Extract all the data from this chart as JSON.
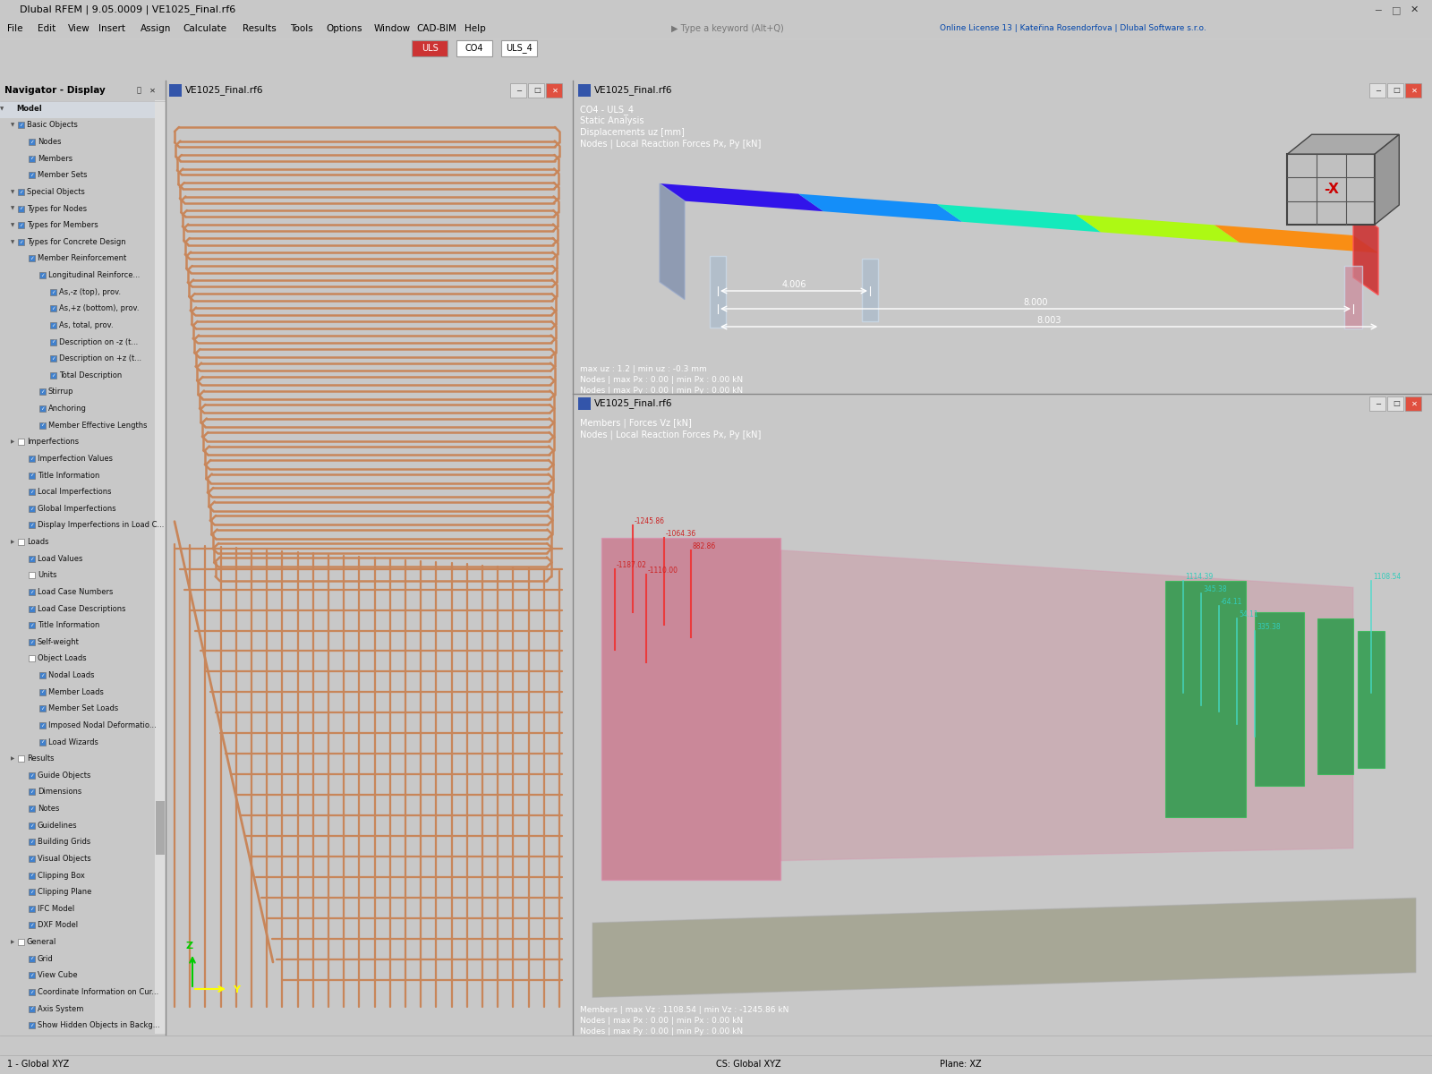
{
  "title_bar": "Dlubal RFEM | 9.05.0009 | VE1025_Final.rf6",
  "bg_main": "#c8c8c8",
  "titlebar_bg": "#f0f0f0",
  "menu_bg": "#f0f0f0",
  "toolbar_bg": "#e8e8e8",
  "nav_header_bg": "#d0d8e8",
  "nav_bg": "#f0f0f0",
  "viewport_bg": "#111111",
  "window_titlebar_bg": "#c8d8e8",
  "copper": "#c8865a",
  "copper2": "#d49070",
  "status_bg": "#d4d4d4",
  "status_bg2": "#e0e0e0",
  "menu_items": [
    "File",
    "Edit",
    "View",
    "Insert",
    "Assign",
    "Calculate",
    "Results",
    "Tools",
    "Options",
    "Window",
    "CAD-BIM",
    "Help"
  ],
  "nav_items": [
    [
      "Model",
      0,
      true
    ],
    [
      "Basic Objects",
      1,
      true
    ],
    [
      "Nodes",
      2,
      true
    ],
    [
      "Members",
      2,
      true
    ],
    [
      "Member Sets",
      2,
      true
    ],
    [
      "Special Objects",
      1,
      true
    ],
    [
      "Types for Nodes",
      1,
      true
    ],
    [
      "Types for Members",
      1,
      true
    ],
    [
      "Types for Concrete Design",
      1,
      true
    ],
    [
      "Member Reinforcement",
      2,
      true
    ],
    [
      "Longitudinal Reinforce...",
      3,
      true
    ],
    [
      "As,-z (top), prov.",
      4,
      true
    ],
    [
      "As,+z (bottom), prov.",
      4,
      true
    ],
    [
      "As, total, prov.",
      4,
      true
    ],
    [
      "Description on -z (t...",
      4,
      true
    ],
    [
      "Description on +z (t...",
      4,
      true
    ],
    [
      "Total Description",
      4,
      true
    ],
    [
      "Stirrup",
      3,
      true
    ],
    [
      "Anchoring",
      3,
      true
    ],
    [
      "Member Effective Lengths",
      3,
      true
    ],
    [
      "Imperfections",
      1,
      false
    ],
    [
      "Imperfection Values",
      2,
      true
    ],
    [
      "Title Information",
      2,
      true
    ],
    [
      "Local Imperfections",
      2,
      true
    ],
    [
      "Global Imperfections",
      2,
      true
    ],
    [
      "Display Imperfections in Load C...",
      2,
      true
    ],
    [
      "Loads",
      1,
      false
    ],
    [
      "Load Values",
      2,
      true
    ],
    [
      "Units",
      2,
      false
    ],
    [
      "Load Case Numbers",
      2,
      true
    ],
    [
      "Load Case Descriptions",
      2,
      true
    ],
    [
      "Title Information",
      2,
      true
    ],
    [
      "Self-weight",
      2,
      true
    ],
    [
      "Object Loads",
      2,
      false
    ],
    [
      "Nodal Loads",
      3,
      true
    ],
    [
      "Member Loads",
      3,
      true
    ],
    [
      "Member Set Loads",
      3,
      true
    ],
    [
      "Imposed Nodal Deformatio...",
      3,
      true
    ],
    [
      "Load Wizards",
      3,
      true
    ],
    [
      "Results",
      1,
      false
    ],
    [
      "Guide Objects",
      2,
      true
    ],
    [
      "Dimensions",
      2,
      true
    ],
    [
      "Notes",
      2,
      true
    ],
    [
      "Guidelines",
      2,
      true
    ],
    [
      "Building Grids",
      2,
      true
    ],
    [
      "Visual Objects",
      2,
      true
    ],
    [
      "Clipping Box",
      2,
      true
    ],
    [
      "Clipping Plane",
      2,
      true
    ],
    [
      "IFC Model",
      2,
      true
    ],
    [
      "DXF Model",
      2,
      true
    ],
    [
      "General",
      1,
      false
    ],
    [
      "Grid",
      2,
      true
    ],
    [
      "View Cube",
      2,
      true
    ],
    [
      "Coordinate Information on Cur...",
      2,
      true
    ],
    [
      "Axis System",
      2,
      true
    ],
    [
      "Show Hidden Objects in Backg...",
      2,
      true
    ]
  ],
  "main_vp_title": "VE1025_Final.rf6",
  "rt_title": "VE1025_Final.rf6",
  "rt_info": [
    "CO4 - ULS_4",
    "Static Analysis",
    "Displacements uz [mm]",
    "Nodes | Local Reaction Forces Px, Py [kN]"
  ],
  "rt_stats": [
    "max uz : 1.2 | min uz : -0.3 mm",
    "Nodes | max Px : 0.00 | min Px : 0.00 kN",
    "Nodes | max Py : 0.00 | min Py : 0.00 kN"
  ],
  "rb_title": "VE1025_Final.rf6",
  "rb_info": [
    "Members | Forces Vz [kN]",
    "Nodes | Local Reaction Forces Px, Py [kN]"
  ],
  "rb_stats": [
    "Members | max Vz : 1108.54 | min Vz : -1245.86 kN",
    "Nodes | max Px : 0.00 | min Px : 0.00 kN",
    "Nodes | max Py : 0.00 | min Py : 0.00 kN"
  ],
  "dim_4006": "4.006",
  "dim_8000": "8.000",
  "dim_8003": "8.003",
  "status_left": "1 - Global XYZ",
  "status_cs": "CS: Global XYZ",
  "status_plane": "Plane: XZ"
}
